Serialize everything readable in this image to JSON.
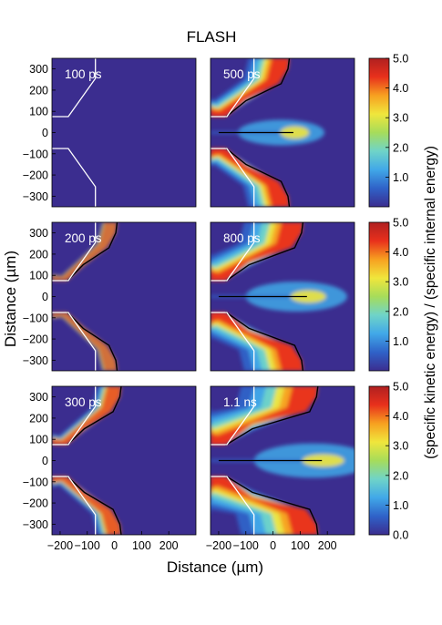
{
  "chart_data": {
    "type": "heatmap",
    "title": "FLASH",
    "xlabel": "Distance (µm)",
    "ylabel": "Distance (µm)",
    "colorbar_label": "(specific kinetic energy) / (specific internal energy)",
    "xlim": [
      -230,
      300
    ],
    "ylim": [
      -350,
      350
    ],
    "x_ticks": [
      "−200",
      "−100",
      "0",
      "100",
      "200"
    ],
    "x_tick_values": [
      -200,
      -100,
      0,
      100,
      200
    ],
    "y_ticks": [
      "300",
      "200",
      "100",
      "0",
      "−100",
      "−200",
      "−300"
    ],
    "y_tick_values": [
      300,
      200,
      100,
      0,
      -100,
      -200,
      -300
    ],
    "colorbar": {
      "range": [
        0,
        5
      ],
      "ticks": [
        "5.0",
        "4.0",
        "3.0",
        "2.0",
        "1.0"
      ],
      "tick_values": [
        5,
        4,
        3,
        2,
        1
      ],
      "bottom_tick": "0.0",
      "colors": [
        "#3b2d8f",
        "#2f62c8",
        "#41a8e8",
        "#6fd4c8",
        "#a6dc5a",
        "#f0e63c",
        "#f7a020",
        "#e8301c",
        "#b02020"
      ]
    },
    "background_color": "#3b2d8f",
    "panels": [
      {
        "label": "100 ps",
        "row": 0,
        "col": 0,
        "front_x": 0,
        "dev": 0.0,
        "strength": 0.0
      },
      {
        "label": "500 ps",
        "row": 0,
        "col": 1,
        "front_x": 60,
        "dev": 1.0,
        "strength": 1.0
      },
      {
        "label": "200 ps",
        "row": 1,
        "col": 0,
        "front_x": 10,
        "dev": 0.25,
        "strength": 0.45
      },
      {
        "label": "800 ps",
        "row": 1,
        "col": 1,
        "front_x": 110,
        "dev": 1.6,
        "strength": 1.0
      },
      {
        "label": "300 ps",
        "row": 2,
        "col": 0,
        "front_x": 25,
        "dev": 0.45,
        "strength": 0.7
      },
      {
        "label": "1.1 ns",
        "row": 2,
        "col": 1,
        "front_x": 165,
        "dev": 2.2,
        "strength": 1.0
      }
    ]
  }
}
